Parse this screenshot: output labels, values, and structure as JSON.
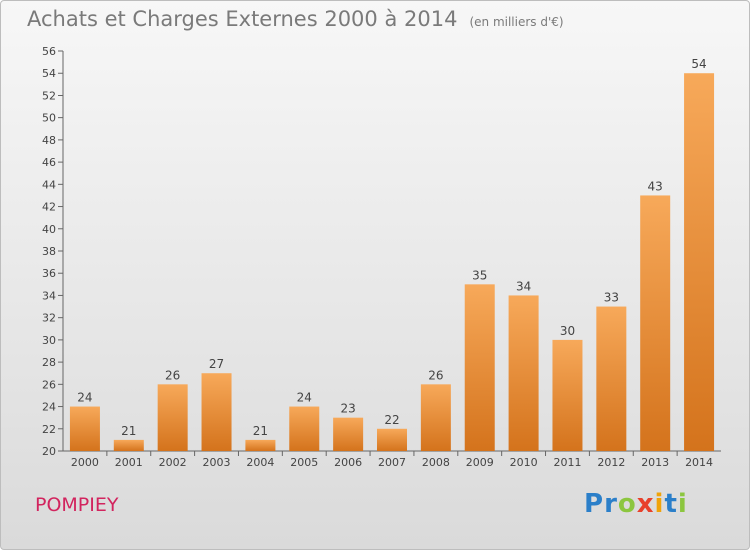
{
  "title": "Achats et Charges Externes 2000 à 2014",
  "unit": "(en milliers d'€)",
  "commune": "POMPIEY",
  "logo": {
    "letters": [
      "P",
      "r",
      "o",
      "x",
      "i",
      "t",
      "i"
    ],
    "colors": [
      "#2b7fc9",
      "#2b7fc9",
      "#8cc63f",
      "#e8412b",
      "#f0a30a",
      "#2b7fc9",
      "#8cc63f"
    ]
  },
  "colors": {
    "bar_light": "#f7a95a",
    "bar_dark": "#d4731c",
    "label": "#444444"
  },
  "chart_data": {
    "type": "bar",
    "categories": [
      "2000",
      "2001",
      "2002",
      "2003",
      "2004",
      "2005",
      "2006",
      "2007",
      "2008",
      "2009",
      "2010",
      "2011",
      "2012",
      "2013",
      "2014"
    ],
    "values": [
      24,
      21,
      26,
      27,
      21,
      24,
      23,
      22,
      26,
      35,
      34,
      30,
      33,
      43,
      54
    ],
    "ylim": [
      20,
      56
    ],
    "yticks": [
      20,
      22,
      24,
      26,
      28,
      30,
      32,
      34,
      36,
      38,
      40,
      42,
      44,
      46,
      48,
      50,
      52,
      54,
      56
    ],
    "grid": false,
    "data_labels": true
  }
}
